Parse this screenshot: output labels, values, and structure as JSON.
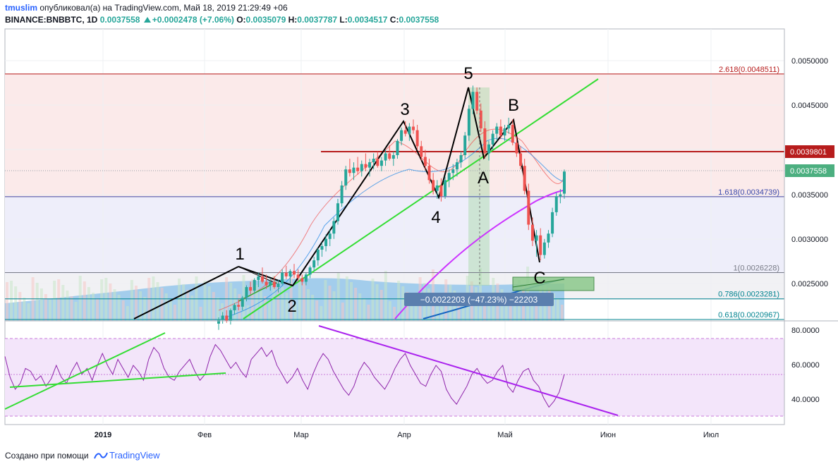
{
  "header": {
    "user": "tmuslim",
    "published": "опубликовал(а) на TradingView.com, Май 18, 2019 21:29:49 +06",
    "symbol": "BINANCE:BNBBTC, 1D",
    "last": "0.0037558",
    "change": "+0.0002478 (+7.06%)",
    "o_label": "O:",
    "o": "0.0035079",
    "h_label": "H:",
    "h": "0.0037787",
    "l_label": "L:",
    "l": "0.0034517",
    "c_label": "C:",
    "c": "0.0037558"
  },
  "footer": {
    "text": "Создано при помощи",
    "brand": "TradingView"
  },
  "colors": {
    "up": "#26a69a",
    "down": "#ef5350",
    "green_line": "#33dd33",
    "magenta": "#cc33ff",
    "rsi_line": "#8e24aa",
    "fib_red": "#b71c1c",
    "fib_blue": "#3949ab",
    "price_tag_red": "#b71c1c",
    "price_tag_green": "#4caf80"
  },
  "chart_data": {
    "type": "candlestick",
    "x_labels": [
      "2019",
      "Фев",
      "Мар",
      "Апр",
      "Май",
      "Июн",
      "Июл"
    ],
    "price_axis": [
      "0.0050000",
      "0.0045000",
      "0.0040000",
      "0.0035000",
      "0.0030000",
      "0.0025000"
    ],
    "rsi_axis": [
      "80.0000",
      "60.0000",
      "40.0000"
    ],
    "price_tags": [
      {
        "value": "0.0039801",
        "color": "#b71c1c"
      },
      {
        "value": "0.0037558",
        "color": "#4caf80"
      }
    ],
    "fib_levels": [
      {
        "label": "2.618(0.0048511)",
        "value": 0.0048511,
        "color": "#b71c1c"
      },
      {
        "label": "1.618(0.0034739)",
        "value": 0.0034739,
        "color": "#3949ab"
      },
      {
        "label": "1(0.0026228)",
        "value": 0.0026228,
        "color": "#787b86"
      },
      {
        "label": "0.786(0.0023281)",
        "value": 0.0023281,
        "color": "#00838f"
      },
      {
        "label": "0.618(0.0020967)",
        "value": 0.0020967,
        "color": "#00838f"
      }
    ],
    "wave_labels": [
      "1",
      "2",
      "3",
      "4",
      "5",
      "A",
      "B",
      "C"
    ],
    "measure_label": "−0.0022203 (−47.23%) −22203",
    "candles_ohlc": [
      [
        0.00205,
        0.00212,
        0.00198,
        0.0021
      ],
      [
        0.0021,
        0.00218,
        0.00205,
        0.00214
      ],
      [
        0.00214,
        0.0022,
        0.00206,
        0.00208
      ],
      [
        0.00208,
        0.00222,
        0.00204,
        0.0022
      ],
      [
        0.0022,
        0.00228,
        0.00215,
        0.00226
      ],
      [
        0.00226,
        0.00232,
        0.0022,
        0.00224
      ],
      [
        0.00224,
        0.00236,
        0.0022,
        0.00234
      ],
      [
        0.00234,
        0.00248,
        0.0023,
        0.00246
      ],
      [
        0.00246,
        0.00252,
        0.00238,
        0.00242
      ],
      [
        0.00242,
        0.00256,
        0.0024,
        0.00254
      ],
      [
        0.00254,
        0.00262,
        0.00246,
        0.00258
      ],
      [
        0.00258,
        0.00268,
        0.0025,
        0.00252
      ],
      [
        0.00252,
        0.0026,
        0.00244,
        0.00248
      ],
      [
        0.00248,
        0.00256,
        0.00242,
        0.00252
      ],
      [
        0.00252,
        0.00258,
        0.00244,
        0.00246
      ],
      [
        0.00246,
        0.00254,
        0.0024,
        0.0025
      ],
      [
        0.0025,
        0.00266,
        0.00248,
        0.00262
      ],
      [
        0.00262,
        0.0027,
        0.00255,
        0.00258
      ],
      [
        0.00258,
        0.00266,
        0.0025,
        0.00264
      ],
      [
        0.00264,
        0.00272,
        0.00256,
        0.0026
      ],
      [
        0.0026,
        0.00266,
        0.00252,
        0.00256
      ],
      [
        0.00256,
        0.0026,
        0.00248,
        0.00252
      ],
      [
        0.00252,
        0.00262,
        0.00248,
        0.0026
      ],
      [
        0.0026,
        0.0027,
        0.00256,
        0.00268
      ],
      [
        0.00268,
        0.0028,
        0.00264,
        0.00276
      ],
      [
        0.00276,
        0.0029,
        0.0027,
        0.00288
      ],
      [
        0.00288,
        0.00296,
        0.0028,
        0.00292
      ],
      [
        0.00292,
        0.00305,
        0.00286,
        0.003
      ],
      [
        0.003,
        0.0031,
        0.00292,
        0.00306
      ],
      [
        0.00306,
        0.00324,
        0.003,
        0.0032
      ],
      [
        0.0032,
        0.00345,
        0.00316,
        0.0034
      ],
      [
        0.0034,
        0.00365,
        0.00336,
        0.0036
      ],
      [
        0.0036,
        0.00382,
        0.00355,
        0.00378
      ],
      [
        0.00378,
        0.0039,
        0.0037,
        0.00374
      ],
      [
        0.00374,
        0.00386,
        0.00366,
        0.0038
      ],
      [
        0.0038,
        0.00392,
        0.00372,
        0.00376
      ],
      [
        0.00376,
        0.00388,
        0.0037,
        0.00384
      ],
      [
        0.00384,
        0.00396,
        0.00376,
        0.0038
      ],
      [
        0.0038,
        0.0039,
        0.0037,
        0.00386
      ],
      [
        0.00386,
        0.00396,
        0.00378,
        0.0039
      ],
      [
        0.0039,
        0.00398,
        0.0038,
        0.00382
      ],
      [
        0.00382,
        0.00392,
        0.00376,
        0.00388
      ],
      [
        0.00388,
        0.004,
        0.00382,
        0.00396
      ],
      [
        0.00396,
        0.00405,
        0.00388,
        0.0039
      ],
      [
        0.0039,
        0.00398,
        0.00382,
        0.00394
      ],
      [
        0.00394,
        0.00412,
        0.0039,
        0.0041
      ],
      [
        0.0041,
        0.00425,
        0.00405,
        0.00422
      ],
      [
        0.00422,
        0.00432,
        0.00415,
        0.00418
      ],
      [
        0.00418,
        0.0043,
        0.0041,
        0.00426
      ],
      [
        0.00426,
        0.00434,
        0.00418,
        0.00422
      ],
      [
        0.00422,
        0.00428,
        0.004,
        0.00404
      ],
      [
        0.00404,
        0.0041,
        0.00388,
        0.00392
      ],
      [
        0.00392,
        0.004,
        0.00378,
        0.00382
      ],
      [
        0.00382,
        0.0039,
        0.00362,
        0.00366
      ],
      [
        0.00366,
        0.00374,
        0.0035,
        0.00354
      ],
      [
        0.00354,
        0.00366,
        0.00345,
        0.0036
      ],
      [
        0.0036,
        0.00368,
        0.00342,
        0.00348
      ],
      [
        0.00348,
        0.0037,
        0.00345,
        0.00366
      ],
      [
        0.00366,
        0.00378,
        0.00358,
        0.00374
      ],
      [
        0.00374,
        0.00384,
        0.00366,
        0.00378
      ],
      [
        0.00378,
        0.0039,
        0.0037,
        0.00386
      ],
      [
        0.00386,
        0.00398,
        0.0038,
        0.00394
      ],
      [
        0.00394,
        0.0042,
        0.0039,
        0.00416
      ],
      [
        0.00416,
        0.0045,
        0.0041,
        0.00446
      ],
      [
        0.00446,
        0.00472,
        0.0044,
        0.00465
      ],
      [
        0.00465,
        0.0047,
        0.0044,
        0.00444
      ],
      [
        0.00444,
        0.00452,
        0.0042,
        0.00424
      ],
      [
        0.00424,
        0.00432,
        0.0039,
        0.00396
      ],
      [
        0.00396,
        0.0041,
        0.00388,
        0.00406
      ],
      [
        0.00406,
        0.00422,
        0.004,
        0.00418
      ],
      [
        0.00418,
        0.0043,
        0.0041,
        0.00426
      ],
      [
        0.00426,
        0.00434,
        0.00412,
        0.00416
      ],
      [
        0.00416,
        0.00428,
        0.0041,
        0.00424
      ],
      [
        0.00424,
        0.00436,
        0.00418,
        0.00428
      ],
      [
        0.00428,
        0.00434,
        0.00405,
        0.00408
      ],
      [
        0.00408,
        0.00415,
        0.00392,
        0.00396
      ],
      [
        0.00396,
        0.00404,
        0.00378,
        0.00382
      ],
      [
        0.00382,
        0.0039,
        0.0035,
        0.00354
      ],
      [
        0.00354,
        0.00362,
        0.0031,
        0.00316
      ],
      [
        0.00316,
        0.00324,
        0.00292,
        0.00298
      ],
      [
        0.00298,
        0.0031,
        0.0028,
        0.00304
      ],
      [
        0.00304,
        0.00312,
        0.00276,
        0.00282
      ],
      [
        0.00282,
        0.003,
        0.00278,
        0.00296
      ],
      [
        0.00296,
        0.0031,
        0.0029,
        0.00306
      ],
      [
        0.00306,
        0.00335,
        0.00302,
        0.0033
      ],
      [
        0.0033,
        0.00352,
        0.00326,
        0.00348
      ],
      [
        0.00348,
        0.00356,
        0.0034,
        0.0035
      ],
      [
        0.0035079,
        0.0037787,
        0.0034517,
        0.0037558
      ]
    ]
  }
}
